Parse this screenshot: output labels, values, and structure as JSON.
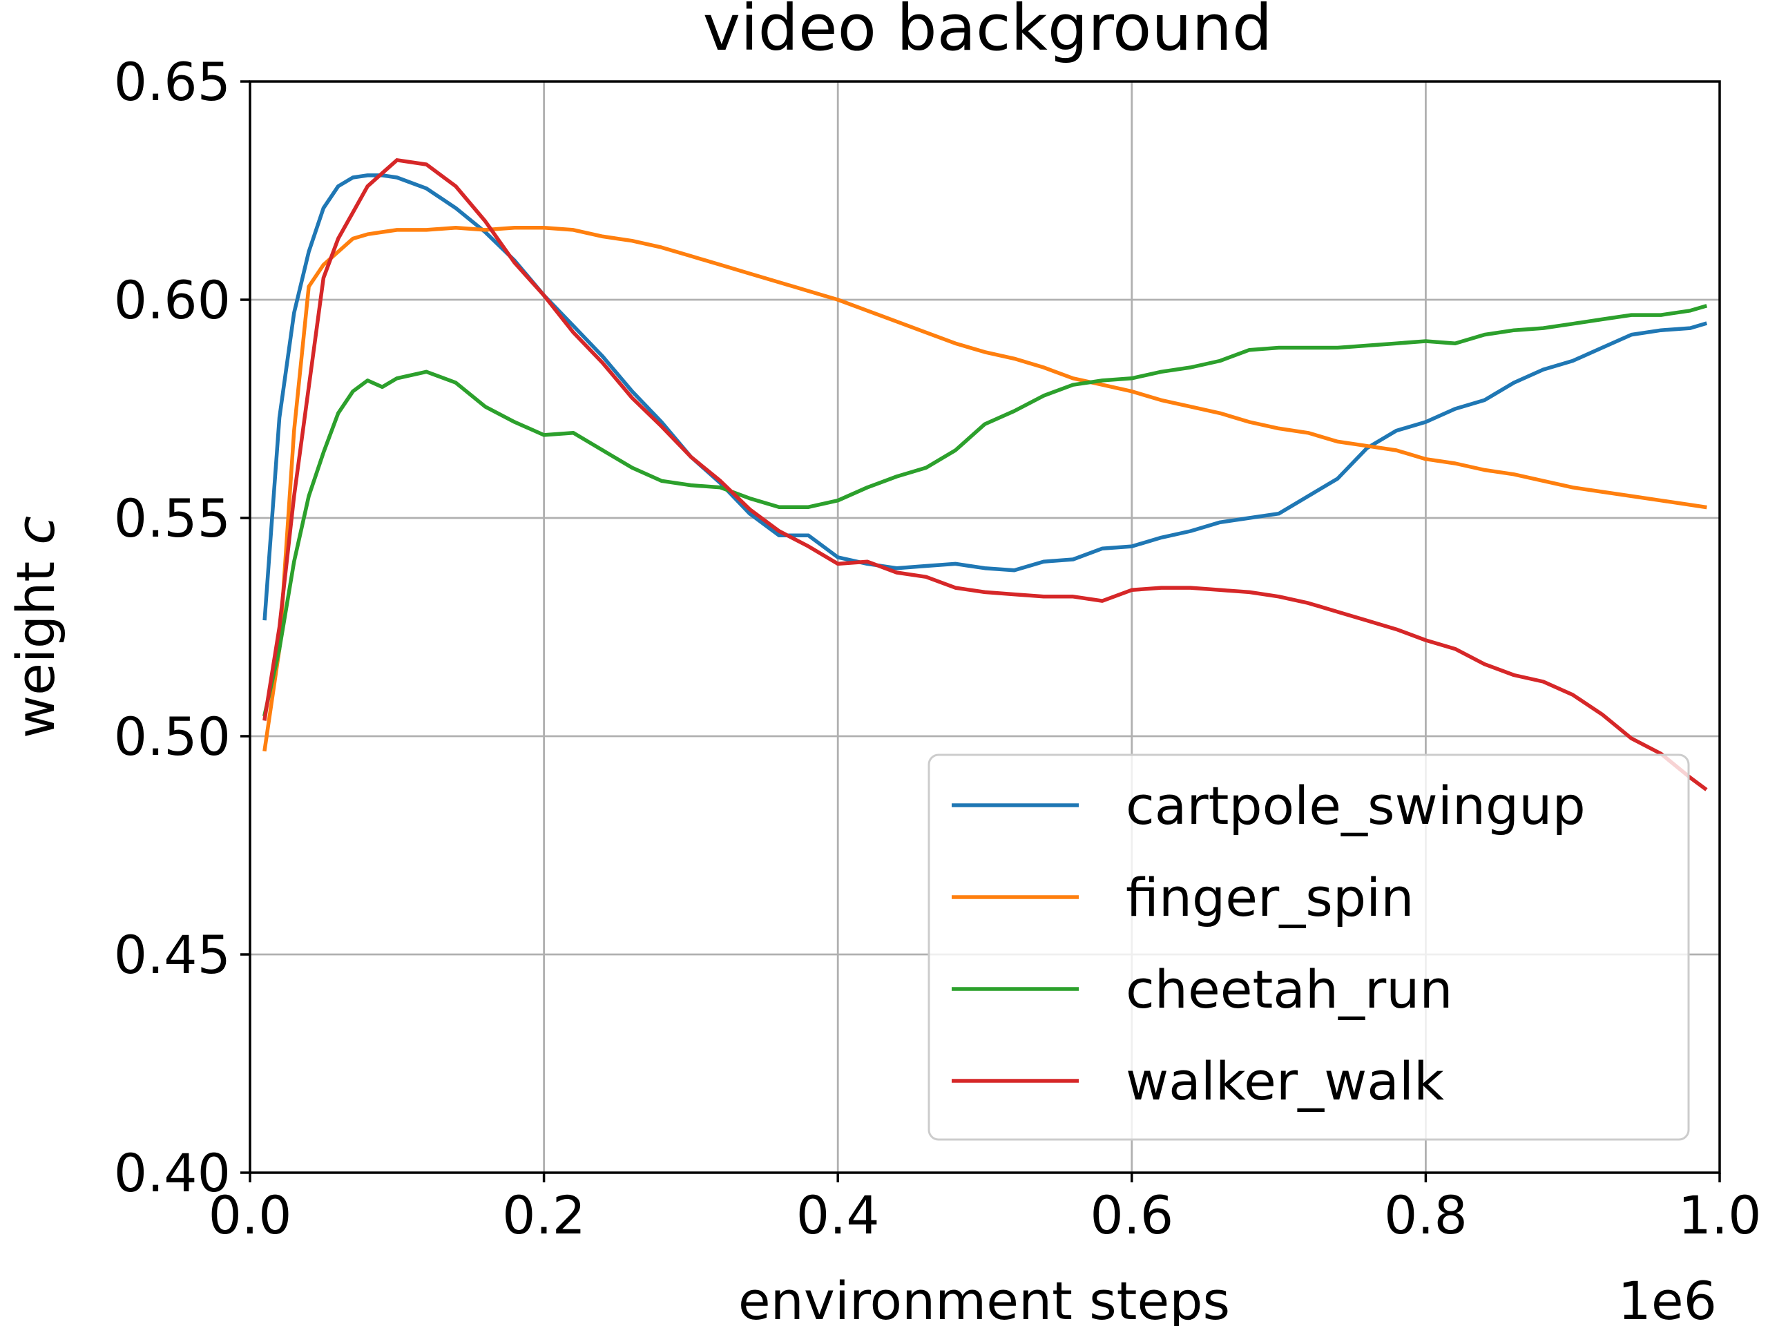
{
  "chart_data": {
    "type": "line",
    "title": "video background",
    "xlabel": "environment steps",
    "ylabel": "weight ",
    "ylabel_italic": "c",
    "x_offset_label": "1e6",
    "xlim": [
      0,
      1000000
    ],
    "ylim": [
      0.4,
      0.65
    ],
    "xticks": [
      0,
      200000,
      400000,
      600000,
      800000,
      1000000
    ],
    "xtick_labels": [
      "0.0",
      "0.2",
      "0.4",
      "0.6",
      "0.8",
      "1.0"
    ],
    "yticks": [
      0.4,
      0.45,
      0.5,
      0.55,
      0.6,
      0.65
    ],
    "ytick_labels": [
      "0.40",
      "0.45",
      "0.50",
      "0.55",
      "0.60",
      "0.65"
    ],
    "grid": true,
    "legend_position": "lower-right",
    "x": [
      10000,
      20000,
      30000,
      40000,
      50000,
      60000,
      70000,
      80000,
      90000,
      100000,
      120000,
      140000,
      160000,
      180000,
      200000,
      220000,
      240000,
      260000,
      280000,
      300000,
      320000,
      340000,
      360000,
      380000,
      400000,
      420000,
      440000,
      460000,
      480000,
      500000,
      520000,
      540000,
      560000,
      580000,
      600000,
      620000,
      640000,
      660000,
      680000,
      700000,
      720000,
      740000,
      760000,
      780000,
      800000,
      820000,
      840000,
      860000,
      880000,
      900000,
      920000,
      940000,
      960000,
      980000,
      990000
    ],
    "series": [
      {
        "name": "cartpole_swingup",
        "color": "#1f77b4",
        "values": [
          0.527,
          0.573,
          0.597,
          0.611,
          0.621,
          0.626,
          0.628,
          0.6285,
          0.6285,
          0.628,
          0.6255,
          0.621,
          0.6155,
          0.609,
          0.601,
          0.594,
          0.587,
          0.579,
          0.572,
          0.564,
          0.558,
          0.551,
          0.546,
          0.546,
          0.541,
          0.5395,
          0.5385,
          0.539,
          0.5395,
          0.5385,
          0.538,
          0.54,
          0.5405,
          0.543,
          0.5435,
          0.5455,
          0.547,
          0.549,
          0.55,
          0.551,
          0.555,
          0.559,
          0.566,
          0.57,
          0.572,
          0.575,
          0.577,
          0.581,
          0.584,
          0.586,
          0.589,
          0.592,
          0.593,
          0.5935,
          0.5945
        ]
      },
      {
        "name": "finger_spin",
        "color": "#ff7f0e",
        "values": [
          0.497,
          0.52,
          0.57,
          0.603,
          0.608,
          0.611,
          0.614,
          0.615,
          0.6155,
          0.616,
          0.616,
          0.6165,
          0.616,
          0.6165,
          0.6165,
          0.616,
          0.6145,
          0.6135,
          0.612,
          0.61,
          0.608,
          0.606,
          0.604,
          0.602,
          0.6,
          0.5975,
          0.595,
          0.5925,
          0.59,
          0.588,
          0.5865,
          0.5845,
          0.582,
          0.5805,
          0.579,
          0.577,
          0.5755,
          0.574,
          0.572,
          0.5705,
          0.5695,
          0.5675,
          0.5665,
          0.5655,
          0.5635,
          0.5625,
          0.561,
          0.56,
          0.5585,
          0.557,
          0.556,
          0.555,
          0.554,
          0.553,
          0.5525
        ]
      },
      {
        "name": "cheetah_run",
        "color": "#2ca02c",
        "values": [
          0.505,
          0.52,
          0.54,
          0.555,
          0.565,
          0.574,
          0.579,
          0.5815,
          0.58,
          0.582,
          0.5835,
          0.581,
          0.5755,
          0.572,
          0.569,
          0.5695,
          0.5655,
          0.5615,
          0.5585,
          0.5575,
          0.557,
          0.5545,
          0.5525,
          0.5525,
          0.554,
          0.557,
          0.5595,
          0.5615,
          0.5655,
          0.5715,
          0.5745,
          0.578,
          0.5805,
          0.5815,
          0.582,
          0.5835,
          0.5845,
          0.586,
          0.5885,
          0.589,
          0.589,
          0.589,
          0.5895,
          0.59,
          0.5905,
          0.59,
          0.592,
          0.593,
          0.5935,
          0.5945,
          0.5955,
          0.5965,
          0.5965,
          0.5975,
          0.5985
        ]
      },
      {
        "name": "walker_walk",
        "color": "#d62728",
        "values": [
          0.504,
          0.525,
          0.555,
          0.58,
          0.605,
          0.614,
          0.62,
          0.626,
          0.629,
          0.632,
          0.631,
          0.626,
          0.618,
          0.6085,
          0.601,
          0.5925,
          0.5855,
          0.5775,
          0.571,
          0.564,
          0.5585,
          0.552,
          0.547,
          0.5435,
          0.5395,
          0.54,
          0.5375,
          0.5365,
          0.534,
          0.533,
          0.5325,
          0.532,
          0.532,
          0.531,
          0.5335,
          0.534,
          0.534,
          0.5335,
          0.533,
          0.532,
          0.5305,
          0.5285,
          0.5265,
          0.5245,
          0.522,
          0.52,
          0.5165,
          0.514,
          0.5125,
          0.5095,
          0.505,
          0.4995,
          0.496,
          0.4905,
          0.488
        ]
      }
    ]
  }
}
